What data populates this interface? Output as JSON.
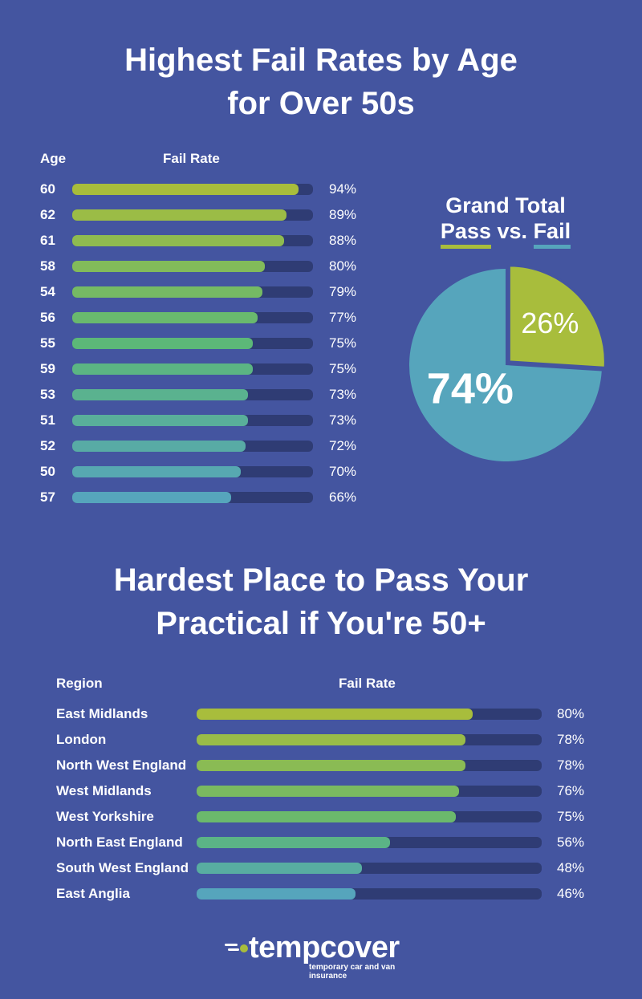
{
  "title1": {
    "line1": "Highest Fail Rates by Age",
    "line2": "for Over 50s"
  },
  "title2": {
    "line1": "Hardest Place to Pass Your",
    "line2": "Practical if You're 50+"
  },
  "age_chart": {
    "col_age": "Age",
    "col_rate": "Fail Rate"
  },
  "region_chart": {
    "col_region": "Region",
    "col_rate": "Fail Rate"
  },
  "pie": {
    "title_line1": "Grand Total",
    "pass_word": "Pass",
    "vs_word": "vs.",
    "fail_word": "Fail"
  },
  "logo": {
    "word": "tempcover",
    "tagline": "temporary car and van insurance"
  },
  "colors": {
    "background": "#4455a0",
    "track": "#2f3c74",
    "pass": "#a8bd3c",
    "fail": "#56a5bc"
  },
  "chart_data": [
    {
      "type": "bar",
      "orientation": "horizontal",
      "title": "Highest Fail Rates by Age for Over 50s",
      "xlabel": "Fail Rate",
      "ylabel": "Age",
      "xlim": [
        0,
        100
      ],
      "categories": [
        "60",
        "62",
        "61",
        "58",
        "54",
        "56",
        "55",
        "59",
        "53",
        "51",
        "52",
        "50",
        "57"
      ],
      "values": [
        94,
        89,
        88,
        80,
        79,
        77,
        75,
        75,
        73,
        73,
        72,
        70,
        66
      ],
      "labels": [
        "94%",
        "89%",
        "88%",
        "80%",
        "79%",
        "77%",
        "75%",
        "75%",
        "73%",
        "73%",
        "72%",
        "70%",
        "66%"
      ]
    },
    {
      "type": "pie",
      "title": "Grand Total Pass vs. Fail",
      "categories": [
        "Pass",
        "Fail"
      ],
      "values": [
        26,
        74
      ],
      "labels": [
        "26%",
        "74%"
      ],
      "colors": [
        "#a8bd3c",
        "#56a5bc"
      ]
    },
    {
      "type": "bar",
      "orientation": "horizontal",
      "title": "Hardest Place to Pass Your Practical if You're 50+",
      "xlabel": "Fail Rate",
      "ylabel": "Region",
      "xlim": [
        0,
        100
      ],
      "categories": [
        "East Midlands",
        "London",
        "North West England",
        "West Midlands",
        "West Yorkshire",
        "North East England",
        "South West England",
        "East Anglia"
      ],
      "values": [
        80,
        78,
        78,
        76,
        75,
        56,
        48,
        46
      ],
      "labels": [
        "80%",
        "78%",
        "78%",
        "76%",
        "75%",
        "56%",
        "48%",
        "46%"
      ]
    }
  ]
}
